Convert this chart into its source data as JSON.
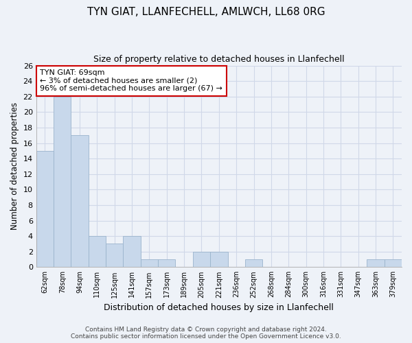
{
  "title1": "TYN GIAT, LLANFECHELL, AMLWCH, LL68 0RG",
  "title2": "Size of property relative to detached houses in Llanfechell",
  "xlabel": "Distribution of detached houses by size in Llanfechell",
  "ylabel": "Number of detached properties",
  "categories": [
    "62sqm",
    "78sqm",
    "94sqm",
    "110sqm",
    "125sqm",
    "141sqm",
    "157sqm",
    "173sqm",
    "189sqm",
    "205sqm",
    "221sqm",
    "236sqm",
    "252sqm",
    "268sqm",
    "284sqm",
    "300sqm",
    "316sqm",
    "331sqm",
    "347sqm",
    "363sqm",
    "379sqm"
  ],
  "values": [
    15,
    22,
    17,
    4,
    3,
    4,
    1,
    1,
    0,
    2,
    2,
    0,
    1,
    0,
    0,
    0,
    0,
    0,
    0,
    1,
    1
  ],
  "bar_color": "#c8d8eb",
  "bar_edge_color": "#9ab4cc",
  "annotation_box_text": "TYN GIAT: 69sqm\n← 3% of detached houses are smaller (2)\n96% of semi-detached houses are larger (67) →",
  "annotation_box_color": "#ffffff",
  "annotation_box_edge_color": "#cc0000",
  "ylim": [
    0,
    26
  ],
  "yticks": [
    0,
    2,
    4,
    6,
    8,
    10,
    12,
    14,
    16,
    18,
    20,
    22,
    24,
    26
  ],
  "footer_line1": "Contains HM Land Registry data © Crown copyright and database right 2024.",
  "footer_line2": "Contains public sector information licensed under the Open Government Licence v3.0.",
  "grid_color": "#d0d8e8",
  "bg_color": "#eef2f8"
}
